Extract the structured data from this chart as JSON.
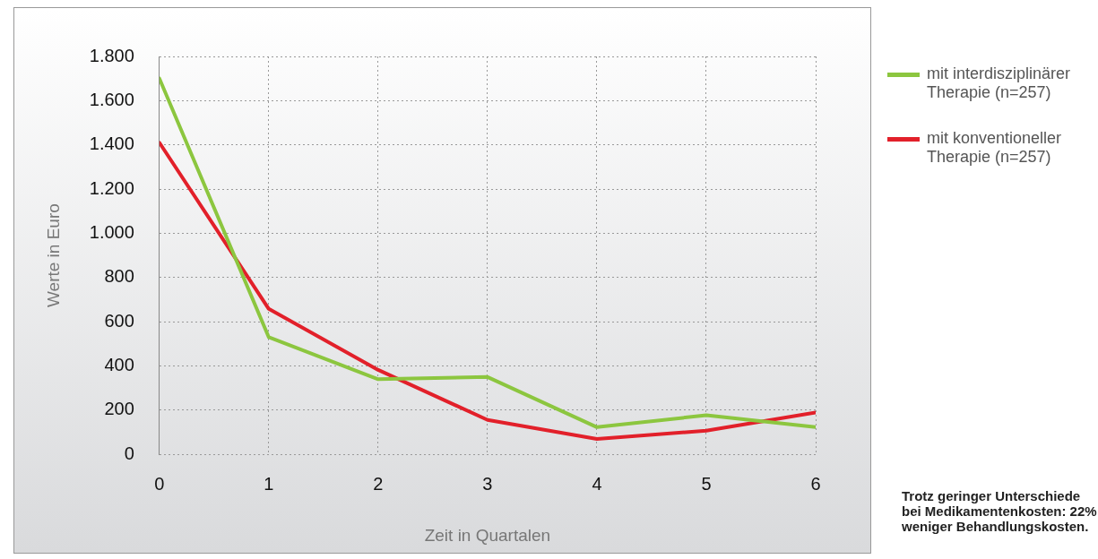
{
  "chart_data": {
    "type": "line",
    "xlabel": "Zeit in Quartalen",
    "ylabel": "Werte in Euro",
    "x": [
      0,
      1,
      2,
      3,
      4,
      5,
      6
    ],
    "series": [
      {
        "name": "mit interdisziplinärer Therapie (n=257)",
        "color": "#8cc63f",
        "values": [
          1700,
          530,
          340,
          350,
          123,
          177,
          123
        ]
      },
      {
        "name": "mit konventioneller Therapie (n=257)",
        "color": "#e2202a",
        "values": [
          1410,
          658,
          382,
          156,
          70,
          107,
          189
        ]
      }
    ],
    "xlim": [
      0,
      6
    ],
    "xticks": [
      0,
      1,
      2,
      3,
      4,
      5,
      6
    ],
    "ylim": [
      0,
      1800
    ],
    "yticks": [
      0,
      200,
      400,
      600,
      800,
      {
        "value": 1000,
        "label": "1.000"
      },
      {
        "value": 1200,
        "label": "1.200"
      },
      {
        "value": 1400,
        "label": "1.400"
      },
      {
        "value": 1600,
        "label": "1.600"
      },
      {
        "value": 1800,
        "label": "1.800"
      }
    ],
    "grid": true,
    "legend": "right",
    "marker": "none",
    "line_style": "solid",
    "annotations": [
      "Trotz geringer Unterschiede bei Medikamentenkosten: 22% weniger Behandlungskosten."
    ]
  }
}
